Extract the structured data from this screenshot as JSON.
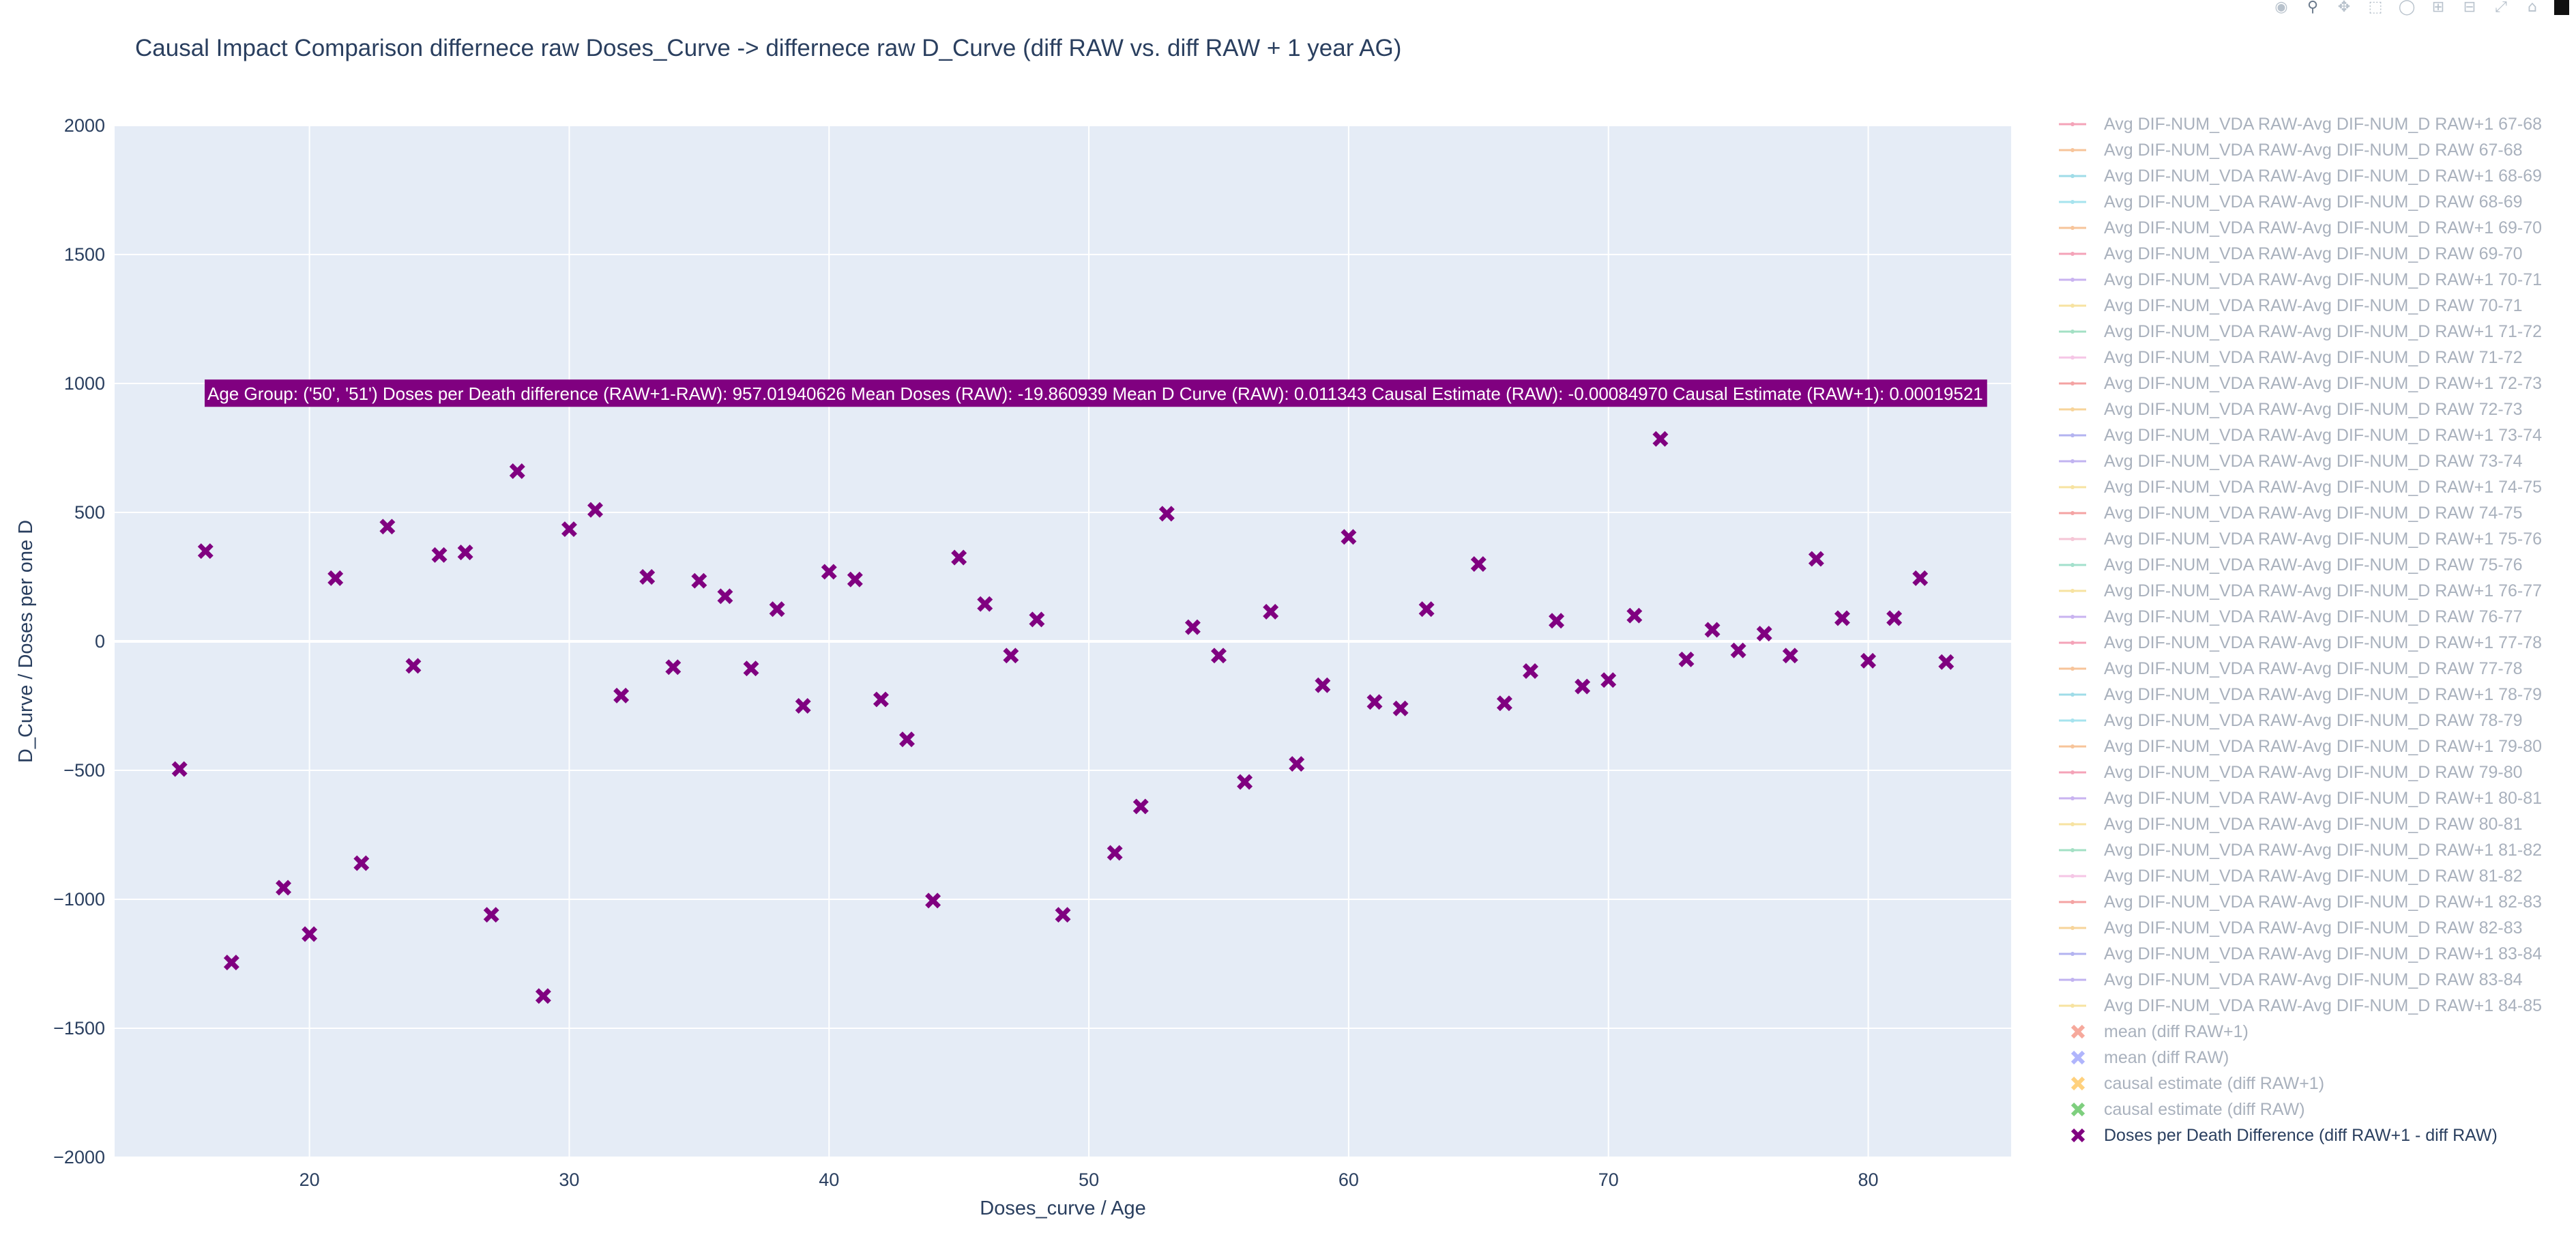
{
  "chart_data": {
    "type": "scatter",
    "title": "Causal Impact Comparison differnece raw Doses_Curve -> differnece raw D_Curve (diff RAW vs. diff RAW + 1 year AG)",
    "xlabel": "Doses_curve / Age",
    "ylabel": "D_Curve / Doses per one D",
    "xlim": [
      12.5,
      85.5
    ],
    "ylim": [
      -2000,
      2000
    ],
    "xticks": [
      20,
      30,
      40,
      50,
      60,
      70,
      80
    ],
    "yticks": [
      -2000,
      -1500,
      -1000,
      -500,
      0,
      500,
      1000,
      1500,
      2000
    ],
    "grid": true,
    "legend_position": "right",
    "series": [
      {
        "name": "Doses per Death Difference (diff RAW+1 - diff RAW)",
        "color": "#800080",
        "marker": "x",
        "x": [
          15,
          16,
          17,
          19,
          20,
          21,
          22,
          23,
          24,
          25,
          26,
          27,
          28,
          29,
          30,
          31,
          32,
          33,
          34,
          35,
          36,
          37,
          38,
          39,
          40,
          41,
          42,
          43,
          44,
          45,
          46,
          47,
          48,
          49,
          51,
          52,
          53,
          54,
          55,
          56,
          57,
          58,
          59,
          60,
          61,
          62,
          63,
          65,
          66,
          67,
          68,
          69,
          70,
          71,
          72,
          73,
          74,
          75,
          76,
          77,
          78,
          79,
          80,
          81,
          82,
          83
        ],
        "y": [
          -495,
          350,
          -1245,
          -955,
          -1135,
          245,
          -860,
          445,
          -95,
          335,
          345,
          -1060,
          660,
          -1375,
          435,
          510,
          -210,
          250,
          -100,
          235,
          175,
          -105,
          125,
          -250,
          270,
          240,
          -225,
          -380,
          -1005,
          325,
          145,
          -55,
          85,
          -1060,
          -820,
          -640,
          495,
          55,
          -55,
          -545,
          115,
          -475,
          -170,
          405,
          -235,
          -260,
          125,
          300,
          -240,
          -115,
          80,
          -175,
          -150,
          100,
          785,
          -70,
          45,
          -35,
          30,
          -55,
          320,
          90,
          -75,
          90,
          245,
          -80
        ]
      }
    ],
    "legend_items": [
      {
        "label": "Avg DIF-NUM_VDA RAW-Avg DIF-NUM_D RAW+1 67-68",
        "color": "#f4a3b8",
        "kind": "line"
      },
      {
        "label": "Avg DIF-NUM_VDA RAW-Avg DIF-NUM_D RAW 67-68",
        "color": "#f7c49a",
        "kind": "line"
      },
      {
        "label": "Avg DIF-NUM_VDA RAW-Avg DIF-NUM_D RAW+1 68-69",
        "color": "#9fdce8",
        "kind": "line"
      },
      {
        "label": "Avg DIF-NUM_VDA RAW-Avg DIF-NUM_D RAW 68-69",
        "color": "#a6e3ee",
        "kind": "line"
      },
      {
        "label": "Avg DIF-NUM_VDA RAW-Avg DIF-NUM_D RAW+1 69-70",
        "color": "#f7c49a",
        "kind": "line"
      },
      {
        "label": "Avg DIF-NUM_VDA RAW-Avg DIF-NUM_D RAW 69-70",
        "color": "#f4a3b8",
        "kind": "line"
      },
      {
        "label": "Avg DIF-NUM_VDA RAW-Avg DIF-NUM_D RAW+1 70-71",
        "color": "#c9b3f0",
        "kind": "line"
      },
      {
        "label": "Avg DIF-NUM_VDA RAW-Avg DIF-NUM_D RAW 70-71",
        "color": "#f7e3a1",
        "kind": "line"
      },
      {
        "label": "Avg DIF-NUM_VDA RAW-Avg DIF-NUM_D RAW+1 71-72",
        "color": "#a3e0c4",
        "kind": "line"
      },
      {
        "label": "Avg DIF-NUM_VDA RAW-Avg DIF-NUM_D RAW 71-72",
        "color": "#f5c6e6",
        "kind": "line"
      },
      {
        "label": "Avg DIF-NUM_VDA RAW-Avg DIF-NUM_D RAW+1 72-73",
        "color": "#f4a3a3",
        "kind": "line"
      },
      {
        "label": "Avg DIF-NUM_VDA RAW-Avg DIF-NUM_D RAW 72-73",
        "color": "#f7d49a",
        "kind": "line"
      },
      {
        "label": "Avg DIF-NUM_VDA RAW-Avg DIF-NUM_D RAW+1 73-74",
        "color": "#b3b3f0",
        "kind": "line"
      },
      {
        "label": "Avg DIF-NUM_VDA RAW-Avg DIF-NUM_D RAW 73-74",
        "color": "#c1b3f0",
        "kind": "line"
      },
      {
        "label": "Avg DIF-NUM_VDA RAW-Avg DIF-NUM_D RAW+1 74-75",
        "color": "#f7e3a1",
        "kind": "line"
      },
      {
        "label": "Avg DIF-NUM_VDA RAW-Avg DIF-NUM_D RAW 74-75",
        "color": "#f4a3a3",
        "kind": "line"
      },
      {
        "label": "Avg DIF-NUM_VDA RAW-Avg DIF-NUM_D RAW+1 75-76",
        "color": "#f5c6d6",
        "kind": "line"
      },
      {
        "label": "Avg DIF-NUM_VDA RAW-Avg DIF-NUM_D RAW 75-76",
        "color": "#a3e0cc",
        "kind": "line"
      },
      {
        "label": "Avg DIF-NUM_VDA RAW-Avg DIF-NUM_D RAW+1 76-77",
        "color": "#f7e3a1",
        "kind": "line"
      },
      {
        "label": "Avg DIF-NUM_VDA RAW-Avg DIF-NUM_D RAW 76-77",
        "color": "#c9b3f0",
        "kind": "line"
      },
      {
        "label": "Avg DIF-NUM_VDA RAW-Avg DIF-NUM_D RAW+1 77-78",
        "color": "#f4a3b8",
        "kind": "line"
      },
      {
        "label": "Avg DIF-NUM_VDA RAW-Avg DIF-NUM_D RAW 77-78",
        "color": "#f7c49a",
        "kind": "line"
      },
      {
        "label": "Avg DIF-NUM_VDA RAW-Avg DIF-NUM_D RAW+1 78-79",
        "color": "#9fdce8",
        "kind": "line"
      },
      {
        "label": "Avg DIF-NUM_VDA RAW-Avg DIF-NUM_D RAW 78-79",
        "color": "#a6e3ee",
        "kind": "line"
      },
      {
        "label": "Avg DIF-NUM_VDA RAW-Avg DIF-NUM_D RAW+1 79-80",
        "color": "#f7c49a",
        "kind": "line"
      },
      {
        "label": "Avg DIF-NUM_VDA RAW-Avg DIF-NUM_D RAW 79-80",
        "color": "#f4a3b8",
        "kind": "line"
      },
      {
        "label": "Avg DIF-NUM_VDA RAW-Avg DIF-NUM_D RAW+1 80-81",
        "color": "#c9b3f0",
        "kind": "line"
      },
      {
        "label": "Avg DIF-NUM_VDA RAW-Avg DIF-NUM_D RAW 80-81",
        "color": "#f7e3a1",
        "kind": "line"
      },
      {
        "label": "Avg DIF-NUM_VDA RAW-Avg DIF-NUM_D RAW+1 81-82",
        "color": "#a3e0c4",
        "kind": "line"
      },
      {
        "label": "Avg DIF-NUM_VDA RAW-Avg DIF-NUM_D RAW 81-82",
        "color": "#f5c6e6",
        "kind": "line"
      },
      {
        "label": "Avg DIF-NUM_VDA RAW-Avg DIF-NUM_D RAW+1 82-83",
        "color": "#f4a3a3",
        "kind": "line"
      },
      {
        "label": "Avg DIF-NUM_VDA RAW-Avg DIF-NUM_D RAW 82-83",
        "color": "#f7d49a",
        "kind": "line"
      },
      {
        "label": "Avg DIF-NUM_VDA RAW-Avg DIF-NUM_D RAW+1 83-84",
        "color": "#b3b3f0",
        "kind": "line"
      },
      {
        "label": "Avg DIF-NUM_VDA RAW-Avg DIF-NUM_D RAW 83-84",
        "color": "#c1b3f0",
        "kind": "line"
      },
      {
        "label": "Avg DIF-NUM_VDA RAW-Avg DIF-NUM_D RAW+1 84-85",
        "color": "#f7e3a1",
        "kind": "line"
      },
      {
        "label": "mean (diff RAW+1)",
        "color": "#ef553b",
        "kind": "x"
      },
      {
        "label": "mean (diff RAW)",
        "color": "#636efa",
        "kind": "x"
      },
      {
        "label": "causal estimate (diff RAW+1)",
        "color": "#ffa500",
        "kind": "x"
      },
      {
        "label": "causal estimate (diff RAW)",
        "color": "#00a000",
        "kind": "x"
      },
      {
        "label": "Doses per Death Difference (diff RAW+1 - diff RAW)",
        "color": "#800080",
        "kind": "x",
        "active": true
      }
    ],
    "annotation": {
      "text": "Age Group: ('50', '51') Doses per Death difference (RAW+1-RAW): 957.01940626 Mean Doses (RAW): -19.860939 Mean D Curve (RAW): 0.011343 Causal Estimate (RAW): -0.00084970 Causal Estimate (RAW+1): 0.00019521",
      "y": 957.01940626,
      "background": "#800080",
      "color": "#ffffff"
    }
  },
  "toolbar": {
    "icons": [
      "camera-icon",
      "zoom-icon",
      "pan-icon",
      "box-select-icon",
      "lasso-icon",
      "zoom-in-icon",
      "zoom-out-icon",
      "autoscale-icon",
      "home-icon",
      "plotly-logo-icon"
    ]
  },
  "colors": {
    "plot_bg": "#e5ecf6",
    "grid": "#ffffff",
    "text": "#2a3f5f",
    "legend_text_inactive": "#a9b1bd"
  }
}
